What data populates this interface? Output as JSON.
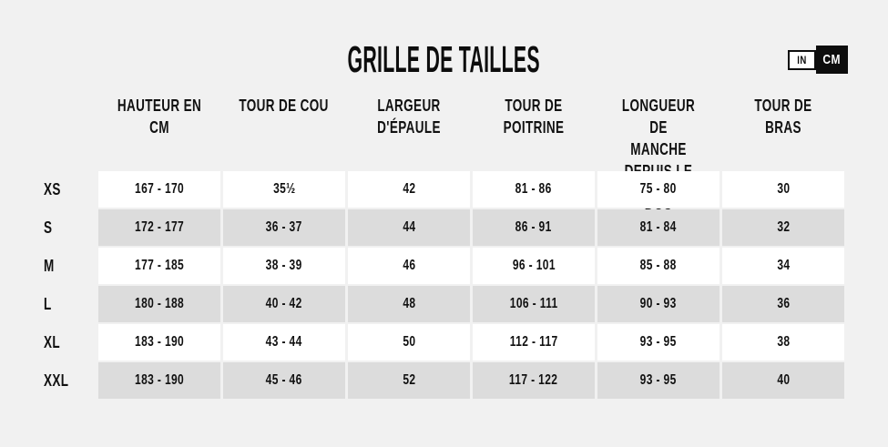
{
  "title": "GRILLE DE TAILLES",
  "unit_toggle": {
    "in_label": "IN",
    "cm_label": "CM",
    "selected": "CM"
  },
  "table": {
    "columns": [
      "HAUTEUR EN CM",
      "TOUR DE COU",
      "LARGEUR D'ÉPAULE",
      "TOUR DE POITRINE",
      "LONGUEUR DE\nMANCHE DEPUIS LE\nMILIEU DU DOS",
      "TOUR DE BRAS"
    ],
    "rows": [
      {
        "size": "XS",
        "values": [
          "167 - 170",
          "35½",
          "42",
          "81 - 86",
          "75 - 80",
          "30"
        ]
      },
      {
        "size": "S",
        "values": [
          "172 - 177",
          "36 - 37",
          "44",
          "86 - 91",
          "81 - 84",
          "32"
        ]
      },
      {
        "size": "M",
        "values": [
          "177 - 185",
          "38 - 39",
          "46",
          "96 - 101",
          "85 - 88",
          "34"
        ]
      },
      {
        "size": "L",
        "values": [
          "180 - 188",
          "40 - 42",
          "48",
          "106 - 111",
          "90 - 93",
          "36"
        ]
      },
      {
        "size": "XL",
        "values": [
          "183 - 190",
          "43 - 44",
          "50",
          "112 - 117",
          "93 - 95",
          "38"
        ]
      },
      {
        "size": "XXL",
        "values": [
          "183 - 190",
          "45 - 46",
          "52",
          "117 - 122",
          "93 - 95",
          "40"
        ]
      }
    ]
  },
  "colors": {
    "background": "#f1f1f1",
    "row_white": "#ffffff",
    "row_gray": "#dcdcdc",
    "text": "#111111",
    "accent_black": "#0d0d0d"
  }
}
